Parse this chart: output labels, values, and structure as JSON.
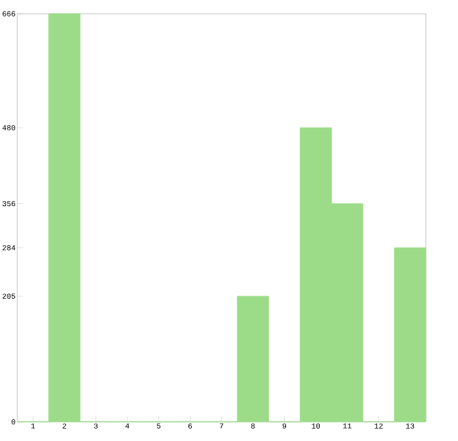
{
  "chart_data": {
    "type": "bar",
    "categories": [
      "1",
      "2",
      "3",
      "4",
      "5",
      "6",
      "7",
      "8",
      "9",
      "10",
      "11",
      "12",
      "13"
    ],
    "values": [
      0,
      666,
      0,
      0,
      0,
      0,
      0,
      205,
      0,
      480,
      356,
      0,
      284
    ],
    "color": "#9cdc88",
    "ylim": [
      0,
      666
    ],
    "yticks": [
      0,
      205,
      284,
      356,
      480,
      666
    ],
    "grid": false
  }
}
